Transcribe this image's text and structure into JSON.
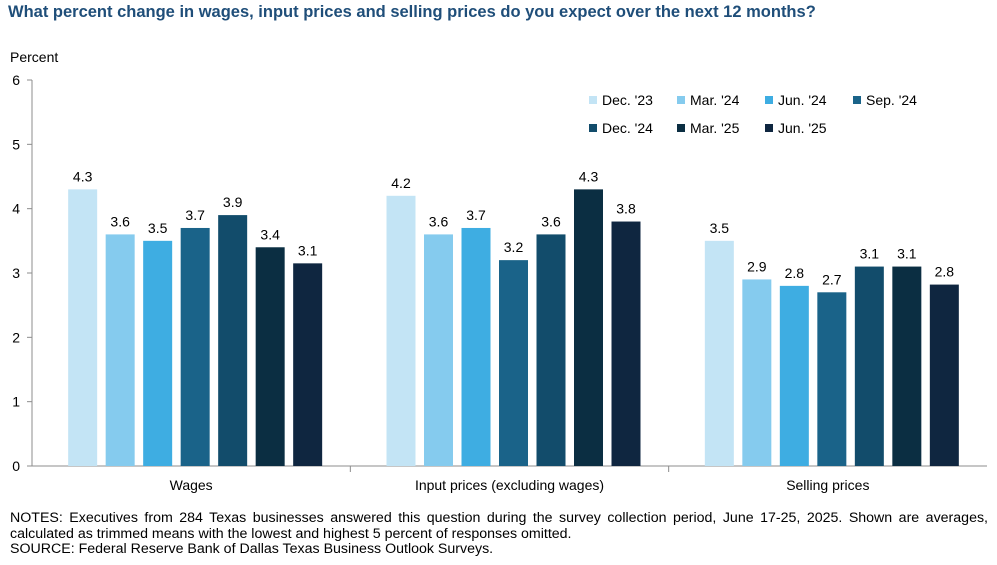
{
  "title": "What percent change in wages, input prices and selling prices do you expect over the next 12 months?",
  "notes": "NOTES: Executives from 284 Texas businesses answered this question during the survey collection period, June 17-25, 2025. Shown are averages, calculated as trimmed means with the lowest and highest 5 percent of responses omitted.",
  "source": "SOURCE: Federal Reserve Bank of Dallas Texas Business Outlook Surveys.",
  "chart_data": {
    "type": "bar",
    "ylabel": "Percent",
    "ylim": [
      0,
      6
    ],
    "yticks": [
      0,
      1,
      2,
      3,
      4,
      5,
      6
    ],
    "grid": false,
    "legend_position": "top-right",
    "categories": [
      "Wages",
      "Input prices (excluding wages)",
      "Selling prices"
    ],
    "series": [
      {
        "name": "Dec. '23",
        "color": "#c3e4f5",
        "values": [
          4.3,
          4.2,
          3.5
        ],
        "labels": [
          "4.3",
          "4.2",
          "3.5"
        ]
      },
      {
        "name": "Mar. '24",
        "color": "#85cbee",
        "values": [
          3.6,
          3.6,
          2.9
        ],
        "labels": [
          "3.6",
          "3.6",
          "2.9"
        ]
      },
      {
        "name": "Jun. '24",
        "color": "#3eade2",
        "values": [
          3.5,
          3.7,
          2.8
        ],
        "labels": [
          "3.5",
          "3.7",
          "2.8"
        ]
      },
      {
        "name": "Sep. '24",
        "color": "#1a6389",
        "values": [
          3.7,
          3.2,
          2.7
        ],
        "labels": [
          "3.7",
          "3.2",
          "2.7"
        ]
      },
      {
        "name": "Dec. '24",
        "color": "#124c6b",
        "values": [
          3.9,
          3.6,
          3.1
        ],
        "labels": [
          "3.9",
          "3.6",
          "3.1"
        ]
      },
      {
        "name": "Mar. '25",
        "color": "#0b2e42",
        "values": [
          3.4,
          4.3,
          3.1
        ],
        "labels": [
          "3.4",
          "4.3",
          "3.1"
        ]
      },
      {
        "name": "Jun. '25",
        "color": "#0f2640",
        "values": [
          3.15,
          3.8,
          2.82
        ],
        "labels": [
          "3.1",
          "3.8",
          "2.8"
        ]
      }
    ]
  }
}
